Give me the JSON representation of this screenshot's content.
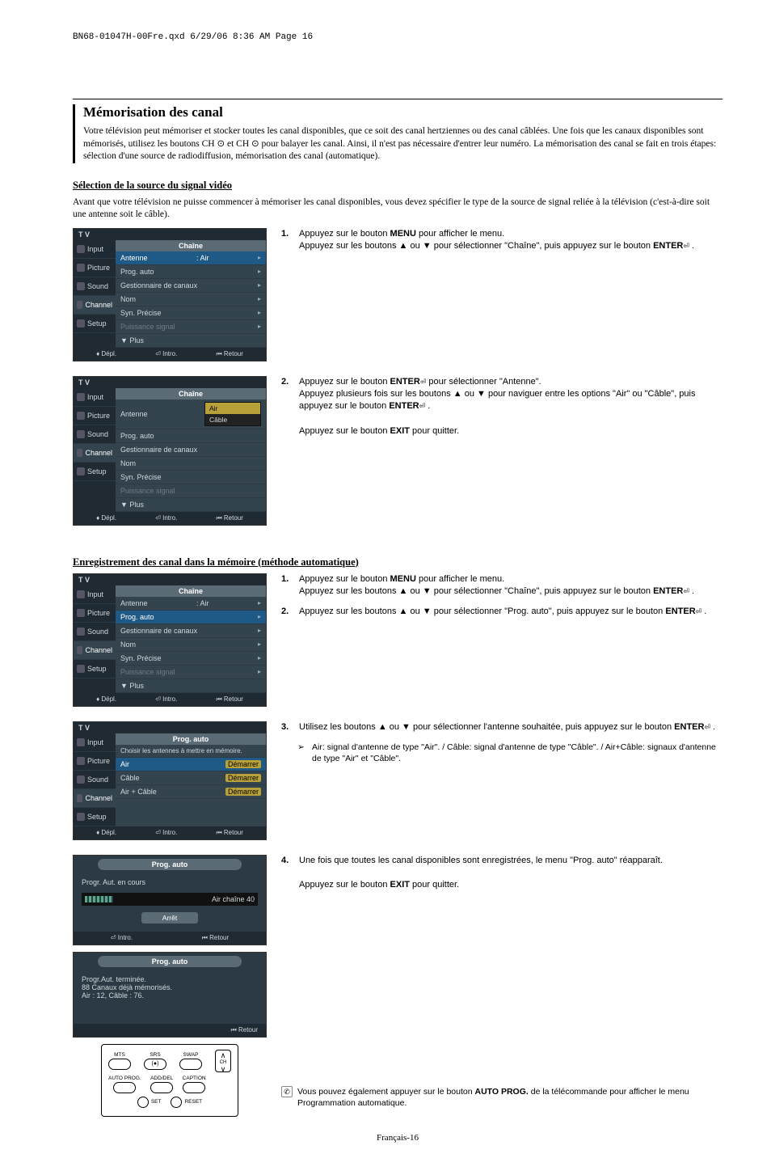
{
  "header_code": "BN68-01047H-00Fre.qxd  6/29/06 8:36 AM  Page 16",
  "title": "Mémorisation des canal",
  "title_para": "Votre télévision peut mémoriser et stocker toutes les canal disponibles, que ce soit des canal hertziennes ou des canal câblées. Une fois que les canaux disponibles sont mémorisés, utilisez les boutons CH ⊙ et CH ⊙ pour balayer les canal. Ainsi, il n'est pas nécessaire d'entrer leur numéro. La mémorisation des canal se fait en trois étapes: sélection d'une source de radiodiffusion, mémorisation des canal (automatique).",
  "sec1_heading": "Sélection de la source du signal vidéo",
  "sec1_intro": "Avant que votre télévision ne puisse commencer à mémoriser les canal disponibles, vous devez spécifier le type de la source de signal reliée à la télévision (c'est-à-dire soit une antenne soit le câble).",
  "sec1_step1": "Appuyez sur le bouton <b>MENU</b> pour afficher le menu.<br>Appuyez sur les boutons ▲ ou ▼ pour sélectionner \"Chaîne\", puis appuyez sur le bouton <b>ENTER</b><span class='ent'>⏎</span> .",
  "sec1_step2": "Appuyez sur le bouton <b>ENTER</b><span class='ent'>⏎</span> pour sélectionner \"Antenne\".<br>Appuyez plusieurs fois sur les boutons ▲ ou ▼ pour naviguer entre les options \"Air\" ou \"Câble\", puis appuyez sur le bouton <b>ENTER</b><span class='ent'>⏎</span> .<br><br>Appuyez sur le bouton <b>EXIT</b> pour quitter.",
  "sec2_heading": "Enregistrement des canal dans la mémoire (méthode automatique)",
  "sec2_step1": "Appuyez sur le bouton <b>MENU</b> pour afficher le menu.<br>Appuyez sur les boutons ▲ ou ▼ pour sélectionner \"Chaîne\", puis appuyez sur le bouton <b>ENTER</b><span class='ent'>⏎</span> .",
  "sec2_step2": "Appuyez sur les boutons ▲ ou ▼ pour sélectionner \"Prog. auto\", puis appuyez sur le bouton <b>ENTER</b><span class='ent'>⏎</span> .",
  "sec2_step3": "Utilisez les boutons ▲ ou ▼ pour sélectionner l'antenne souhaitée, puis appuyez sur le bouton <b>ENTER</b><span class='ent'>⏎</span> .",
  "sec2_tip": "Air: signal d'antenne de type \"Air\". / Câble: signal d'antenne de type \"Câble\". / Air+Câble: signaux d'antenne de type \"Air\" et \"Câble\".",
  "sec2_step4": "Une fois que toutes les canal disponibles sont enregistrées, le menu \"Prog. auto\" réapparaît.<br><br>Appuyez sur le bouton <b>EXIT</b> pour quitter.",
  "note_text": "Vous pouvez également appuyer sur le bouton <b>AUTO PROG.</b> de la télécommande pour afficher le menu Programmation automatique.",
  "footer": "Français-16",
  "menu": {
    "side": [
      "T V",
      "Input",
      "Picture",
      "Sound",
      "Channel",
      "Setup"
    ],
    "title_chaine": "Chaîne",
    "rows_chaine": [
      {
        "l": "Antenne",
        "r": ": Air",
        "sel": true
      },
      {
        "l": "Prog. auto",
        "r": "",
        "sel": false
      },
      {
        "l": "Gestionnaire de canaux",
        "r": "",
        "sel": false
      },
      {
        "l": "Nom",
        "r": "",
        "sel": false
      },
      {
        "l": "Syn. Précise",
        "r": "",
        "sel": false
      },
      {
        "l": "Puissance signal",
        "r": "",
        "dim": true
      },
      {
        "l": "▼ Plus",
        "r": "",
        "sel": false
      }
    ],
    "foot": [
      "♦ Dépl.",
      "⏎ Intro.",
      "⏮ Retour"
    ],
    "dd_air": "Air",
    "dd_cable": "Câble",
    "title_prog": "Prog. auto",
    "prog_head": "Choisir les antennes à mettre en mémoire.",
    "prog_rows": [
      {
        "l": "Air",
        "r": "Démarrer",
        "sel": true
      },
      {
        "l": "Câble",
        "r": "Démarrer"
      },
      {
        "l": "Air + Câble",
        "r": "Démarrer"
      }
    ],
    "p1_title": "Prog. auto",
    "p1_l1": "Progr. Aut. en cours",
    "p1_bar_label": "Air chaîne  40",
    "p1_btn": "Arrêt",
    "p1_foot": [
      "⏎ Intro.",
      "⏮ Retour"
    ],
    "p2_title": "Prog. auto",
    "p2_l1": "Progr.Aut. terminée.",
    "p2_l2": "88 Canaux déjà mémorisés.",
    "p2_l3": "Air : 12, Câble : 76.",
    "p2_foot": "⏮ Retour"
  },
  "remote": {
    "r1": [
      "MTS",
      "SRS",
      "SWAP"
    ],
    "r2": [
      "AUTO PROG.",
      "ADD/DEL",
      "CAPTION"
    ],
    "r3": [
      "SET",
      "RESET"
    ]
  }
}
